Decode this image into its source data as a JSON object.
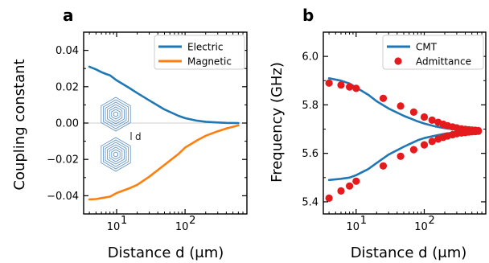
{
  "chart_data": [
    {
      "panel": "a",
      "type": "line",
      "xscale": "log",
      "xlim": [
        3.3,
        800
      ],
      "ylim": [
        -0.05,
        0.05
      ],
      "xlabel": "Distance d (μm)",
      "ylabel": "Coupling constant",
      "xticks": [
        {
          "value": 10,
          "base": "10",
          "exp": "1"
        },
        {
          "value": 100,
          "base": "10",
          "exp": "2"
        }
      ],
      "yticks": [
        {
          "value": 0.04,
          "label": "0.04"
        },
        {
          "value": 0.02,
          "label": "0.02"
        },
        {
          "value": 0.0,
          "label": "0.00"
        },
        {
          "value": -0.02,
          "label": "−0.02"
        },
        {
          "value": -0.04,
          "label": "−0.04"
        }
      ],
      "legend_position": "top-right",
      "inset_label": "d",
      "series": [
        {
          "name": "Electric",
          "color": "#1f77b4",
          "x": [
            4,
            5,
            6,
            7,
            8,
            10,
            15,
            20,
            30,
            50,
            80,
            100,
            150,
            200,
            300,
            400,
            600
          ],
          "y": [
            0.031,
            0.0295,
            0.028,
            0.027,
            0.0263,
            0.0235,
            0.0195,
            0.0165,
            0.0125,
            0.0075,
            0.004,
            0.0027,
            0.0013,
            0.0007,
            0.0003,
            0.0001,
            0.0
          ]
        },
        {
          "name": "Magnetic",
          "color": "#ff7f0e",
          "x": [
            4,
            5,
            6,
            8,
            10,
            15,
            20,
            30,
            50,
            80,
            100,
            150,
            200,
            300,
            400,
            600
          ],
          "y": [
            -0.042,
            -0.0418,
            -0.0413,
            -0.0405,
            -0.0385,
            -0.036,
            -0.034,
            -0.0295,
            -0.023,
            -0.017,
            -0.0135,
            -0.0095,
            -0.007,
            -0.0045,
            -0.003,
            -0.0013
          ]
        }
      ]
    },
    {
      "panel": "b",
      "type": "line",
      "xscale": "log",
      "xlim": [
        3.3,
        800
      ],
      "ylim": [
        5.35,
        6.1
      ],
      "xlabel": "Distance d (μm)",
      "ylabel": "Frequency (GHz)",
      "xticks": [
        {
          "value": 10,
          "base": "10",
          "exp": "1"
        },
        {
          "value": 100,
          "base": "10",
          "exp": "2"
        }
      ],
      "yticks": [
        {
          "value": 6.0,
          "label": "6.0"
        },
        {
          "value": 5.8,
          "label": "5.8"
        },
        {
          "value": 5.6,
          "label": "5.6"
        },
        {
          "value": 5.4,
          "label": "5.4"
        }
      ],
      "legend_position": "top-right",
      "series": [
        {
          "name": "CMT",
          "style": "line",
          "color": "#1f77b4",
          "x": [
            4,
            6,
            8,
            10,
            15,
            20,
            30,
            50,
            80,
            100,
            150,
            200,
            300,
            400,
            600
          ],
          "y_upper": [
            5.91,
            5.9,
            5.888,
            5.872,
            5.842,
            5.815,
            5.785,
            5.755,
            5.732,
            5.723,
            5.71,
            5.704,
            5.698,
            5.696,
            5.694
          ],
          "y_lower": [
            5.49,
            5.495,
            5.5,
            5.51,
            5.535,
            5.56,
            5.595,
            5.627,
            5.654,
            5.663,
            5.674,
            5.681,
            5.687,
            5.69,
            5.692
          ]
        },
        {
          "name": "Admittance",
          "style": "scatter",
          "color": "#e41a1c",
          "x": [
            4,
            6,
            8,
            10,
            25,
            45,
            70,
            100,
            130,
            160,
            190,
            220,
            260,
            300,
            350,
            400,
            450,
            500,
            560,
            620
          ],
          "y_upper": [
            5.89,
            5.882,
            5.874,
            5.868,
            5.827,
            5.795,
            5.77,
            5.75,
            5.737,
            5.728,
            5.72,
            5.714,
            5.709,
            5.705,
            5.701,
            5.699,
            5.697,
            5.696,
            5.695,
            5.694
          ],
          "y_lower": [
            5.415,
            5.445,
            5.465,
            5.485,
            5.548,
            5.588,
            5.615,
            5.635,
            5.649,
            5.659,
            5.666,
            5.672,
            5.677,
            5.681,
            5.684,
            5.686,
            5.688,
            5.689,
            5.69,
            5.691
          ]
        }
      ]
    }
  ]
}
